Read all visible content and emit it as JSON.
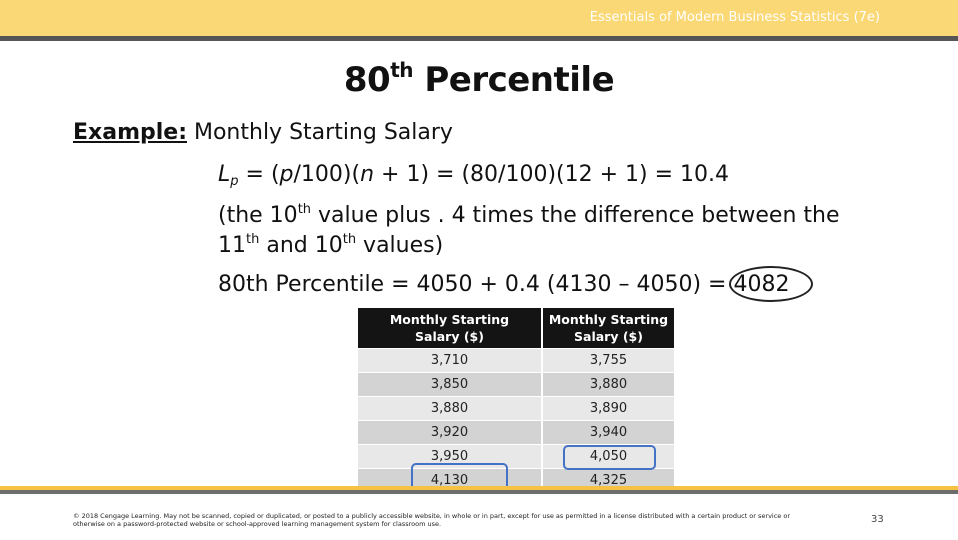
{
  "header": {
    "book_title": "Essentials of Modern Business Statistics (7e)"
  },
  "title": {
    "main": "80",
    "sup": "th",
    "rest": " Percentile"
  },
  "example": {
    "label": "Example:",
    "text": " Monthly Starting Salary"
  },
  "formula": {
    "L": "L",
    "p_sub": "p",
    "eq1": " = (",
    "p": "p",
    "mid": "/100)(",
    "n": "n",
    "rest": " + 1) = (80/100)(12 + 1) = 10.4"
  },
  "note": {
    "part1": "(the  10",
    "sup1": "th",
    "part2": " value plus . 4 times the difference between the",
    "part3": "11",
    "sup2": "th",
    "part4": " and 10",
    "sup3": "th",
    "part5": " values)"
  },
  "result": {
    "text": "80th Percentile = 4050 + 0.4 (4130 – 4050) = ",
    "value": "4082"
  },
  "table": {
    "headers": [
      [
        "Monthly Starting",
        "Salary ($)"
      ],
      [
        "Monthly Starting",
        "Salary ($)"
      ]
    ],
    "rows": [
      [
        "3,710",
        "3,755"
      ],
      [
        "3,850",
        "3,880"
      ],
      [
        "3,880",
        "3,890"
      ],
      [
        "3,920",
        "3,940"
      ],
      [
        "3,950",
        "4,050"
      ],
      [
        "4,130",
        "4,325"
      ]
    ],
    "highlight_color": "#4472c4"
  },
  "footer": {
    "copyright_line1": "© 2018 Cengage Learning. May not be scanned, copied or duplicated, or posted to a publicly accessible website, in whole or in part, except for use as permitted in a license distributed with a certain product or service or",
    "copyright_line2": "otherwise on a password-protected website or school-approved learning management system for classroom use.",
    "page_number": "33"
  },
  "colors": {
    "header_band": "#fbd876",
    "header_line": "#555555",
    "table_header": "#141414"
  }
}
